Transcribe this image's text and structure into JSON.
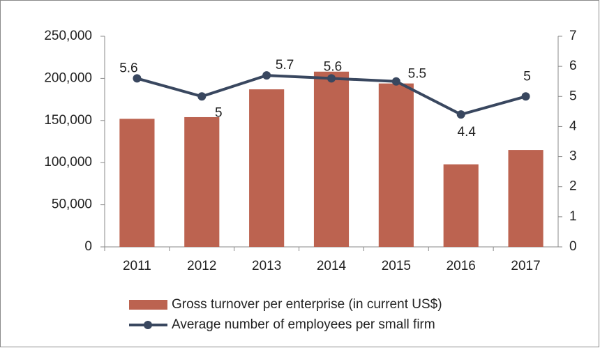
{
  "chart_data": {
    "type": "combo",
    "categories": [
      "2011",
      "2012",
      "2013",
      "2014",
      "2015",
      "2016",
      "2017"
    ],
    "series": [
      {
        "name": "Gross turnover per enterprise (in current US$)",
        "type": "bar",
        "color": "#bc6350",
        "values": [
          152000,
          154000,
          187000,
          208000,
          194000,
          98000,
          115000
        ]
      },
      {
        "name": "Average number of employees per small firm",
        "type": "line",
        "color": "#39475f",
        "axis": "y2",
        "values": [
          5.6,
          5.0,
          5.7,
          5.6,
          5.5,
          4.4,
          5.0
        ]
      }
    ],
    "ylim": [
      0,
      250000
    ],
    "yticks": [
      0,
      {
        "value": 50000,
        "label": "50,000"
      },
      {
        "value": 100000,
        "label": "100,000"
      },
      {
        "value": 150000,
        "label": "150,000"
      },
      {
        "value": 200000,
        "label": "200,000"
      },
      {
        "value": 250000,
        "label": "250,000"
      }
    ],
    "y2lim": [
      0,
      7
    ],
    "y2ticks": [
      0,
      1,
      2,
      3,
      4,
      5,
      6,
      7
    ],
    "legend": "bottom"
  }
}
